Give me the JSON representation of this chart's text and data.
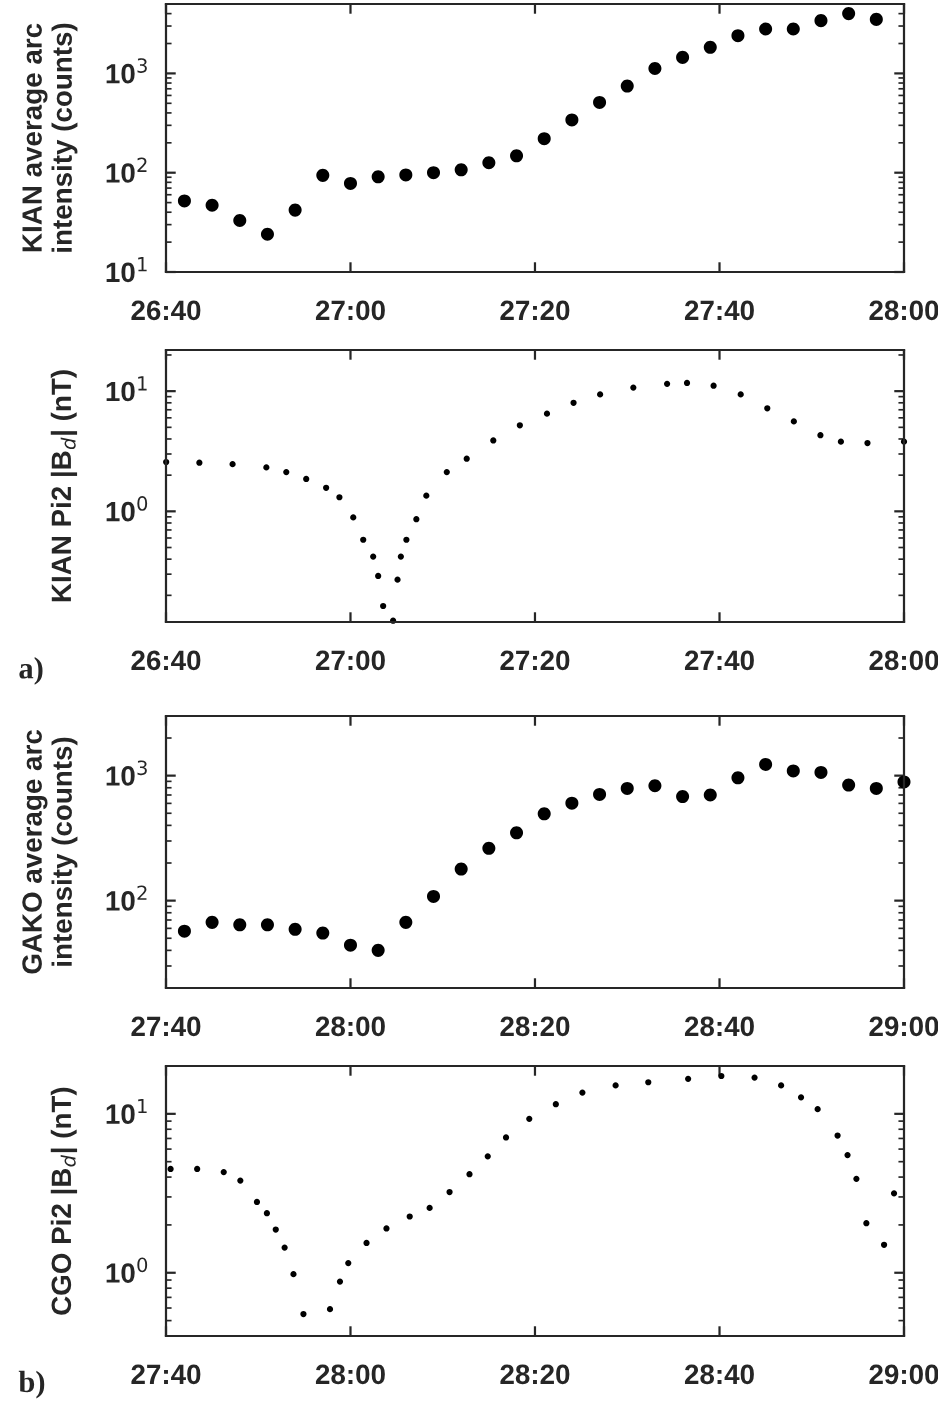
{
  "chart_data": [
    {
      "type": "scatter",
      "ylabel": "KIAN average arc\nintensity (counts)",
      "log": "y",
      "marker": "circle",
      "grid": false,
      "legend": false,
      "xlim": [
        26.6667,
        28.0
      ],
      "xticks": [
        {
          "value": 26.6667,
          "label": "26:40"
        },
        {
          "value": 27.0,
          "label": "27:00"
        },
        {
          "value": 27.3333,
          "label": "27:20"
        },
        {
          "value": 27.6667,
          "label": "27:40"
        },
        {
          "value": 28.0,
          "label": "28:00"
        }
      ],
      "ylim": [
        10,
        5000
      ],
      "yticks": [
        {
          "value": 10,
          "label": "10$^{1}$"
        },
        {
          "value": 100,
          "label": "10$^{2}$"
        },
        {
          "value": 1000,
          "label": "10$^{3}$"
        }
      ],
      "series": [
        {
          "color": "#000000",
          "x": [
            26.7,
            26.75,
            26.8,
            26.85,
            26.9,
            26.95,
            27.0,
            27.05,
            27.1,
            27.15,
            27.2,
            27.25,
            27.3,
            27.35,
            27.4,
            27.45,
            27.5,
            27.55,
            27.6,
            27.65,
            27.7,
            27.75,
            27.8,
            27.85,
            27.9,
            27.95
          ],
          "values": [
            52,
            47,
            33,
            24,
            42,
            94,
            78,
            91,
            95,
            100,
            107,
            126,
            148,
            220,
            340,
            510,
            745,
            1120,
            1450,
            1830,
            2400,
            2800,
            2800,
            3400,
            4000,
            3500
          ]
        }
      ]
    },
    {
      "type": "scatter",
      "ylabel": "KIAN Pi2 |B$_{d}$| (nT)",
      "log": "y",
      "marker": "circle",
      "grid": false,
      "legend": false,
      "annotations": [
        "a)"
      ],
      "xlim": [
        26.6667,
        28.0
      ],
      "xticks": [
        {
          "value": 26.6667,
          "label": "26:40"
        },
        {
          "value": 27.0,
          "label": "27:00"
        },
        {
          "value": 27.3333,
          "label": "27:20"
        },
        {
          "value": 27.6667,
          "label": "27:40"
        },
        {
          "value": 28.0,
          "label": "28:00"
        }
      ],
      "ylim": [
        0.12,
        22
      ],
      "yticks": [
        {
          "value": 1,
          "label": "10$^{0}$"
        },
        {
          "value": 10,
          "label": "10$^{1}$"
        }
      ],
      "series": [
        {
          "color": "#000000",
          "x": [
            26.667,
            26.727,
            26.787,
            26.848,
            26.884,
            26.92,
            26.956,
            26.98,
            27.005,
            27.023,
            27.041,
            27.05,
            27.059,
            27.077,
            27.085,
            27.091,
            27.101,
            27.119,
            27.137,
            27.174,
            27.21,
            27.258,
            27.306,
            27.355,
            27.403,
            27.451,
            27.511,
            27.572,
            27.608,
            27.656,
            27.705,
            27.753,
            27.801,
            27.849,
            27.886,
            27.934,
            28.0
          ],
          "values": [
            2.57,
            2.54,
            2.47,
            2.32,
            2.12,
            1.86,
            1.57,
            1.31,
            0.89,
            0.58,
            0.42,
            0.29,
            0.163,
            0.123,
            0.27,
            0.42,
            0.58,
            0.86,
            1.35,
            2.12,
            2.74,
            3.89,
            5.2,
            6.5,
            8.0,
            9.4,
            10.7,
            11.5,
            11.7,
            11.1,
            9.4,
            7.2,
            5.6,
            4.3,
            3.8,
            3.7,
            3.8
          ]
        }
      ]
    },
    {
      "type": "scatter",
      "ylabel": "GAKO average arc\nintensity (counts)",
      "log": "y",
      "marker": "circle",
      "grid": false,
      "legend": false,
      "xlim": [
        27.6667,
        29.0
      ],
      "xticks": [
        {
          "value": 27.6667,
          "label": "27:40"
        },
        {
          "value": 28.0,
          "label": "28:00"
        },
        {
          "value": 28.3333,
          "label": "28:20"
        },
        {
          "value": 28.6667,
          "label": "28:40"
        },
        {
          "value": 29.0,
          "label": "29:00"
        }
      ],
      "ylim": [
        20,
        3000
      ],
      "yticks": [
        {
          "value": 100,
          "label": "10$^{2}$"
        },
        {
          "value": 1000,
          "label": "10$^{3}$"
        }
      ],
      "series": [
        {
          "color": "#000000",
          "x": [
            27.7,
            27.75,
            27.8,
            27.85,
            27.9,
            27.95,
            28.0,
            28.05,
            28.1,
            28.15,
            28.2,
            28.25,
            28.3,
            28.35,
            28.4,
            28.45,
            28.5,
            28.55,
            28.6,
            28.65,
            28.7,
            28.75,
            28.8,
            28.85,
            28.9,
            28.95,
            29.0
          ],
          "values": [
            57,
            67,
            64,
            64,
            59,
            55,
            44,
            40,
            67,
            108,
            179,
            262,
            349,
            495,
            602,
            707,
            790,
            830,
            680,
            700,
            960,
            1230,
            1090,
            1060,
            840,
            790,
            890
          ]
        }
      ]
    },
    {
      "type": "scatter",
      "ylabel": "CGO Pi2 |B$_{d}$| (nT)",
      "log": "y",
      "marker": "circle",
      "grid": false,
      "legend": false,
      "annotations": [
        "b)"
      ],
      "xlim": [
        27.6667,
        29.0
      ],
      "xticks": [
        {
          "value": 27.6667,
          "label": "27:40"
        },
        {
          "value": 28.0,
          "label": "28:00"
        },
        {
          "value": 28.3333,
          "label": "28:20"
        },
        {
          "value": 28.6667,
          "label": "28:40"
        },
        {
          "value": 29.0,
          "label": "29:00"
        }
      ],
      "ylim": [
        0.4,
        20
      ],
      "yticks": [
        {
          "value": 1,
          "label": "10$^{0}$"
        },
        {
          "value": 10,
          "label": "10$^{1}$"
        }
      ],
      "series": [
        {
          "color": "#000000",
          "x": [
            27.675,
            27.723,
            27.771,
            27.801,
            27.831,
            27.849,
            27.865,
            27.881,
            27.897,
            27.915,
            27.963,
            27.981,
            27.996,
            28.029,
            28.065,
            28.107,
            28.143,
            28.179,
            28.215,
            28.248,
            28.281,
            28.323,
            28.371,
            28.419,
            28.479,
            28.538,
            28.61,
            28.67,
            28.73,
            28.778,
            28.814,
            28.844,
            28.88,
            28.898,
            28.914,
            28.932,
            28.964,
            28.982
          ],
          "values": [
            4.5,
            4.5,
            4.3,
            3.8,
            2.79,
            2.37,
            1.87,
            1.44,
            0.98,
            0.55,
            0.59,
            0.88,
            1.15,
            1.54,
            1.9,
            2.26,
            2.56,
            3.22,
            4.17,
            5.4,
            7.1,
            9.3,
            11.5,
            13.6,
            15.1,
            15.8,
            16.6,
            17.3,
            16.9,
            15.1,
            12.7,
            10.7,
            7.3,
            5.5,
            3.9,
            2.05,
            1.5,
            3.16
          ]
        }
      ]
    }
  ]
}
